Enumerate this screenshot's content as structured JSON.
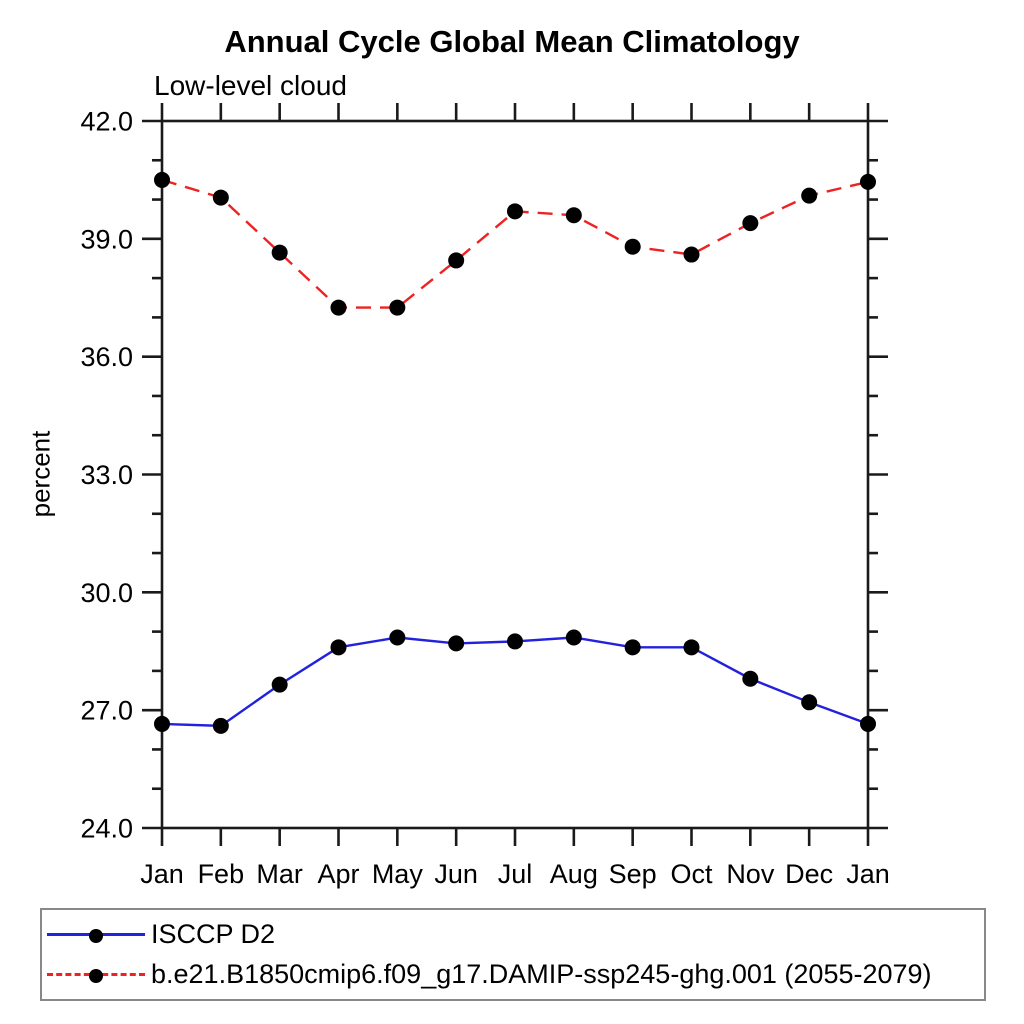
{
  "header": {
    "title": "Annual Cycle Global Mean Climatology",
    "subtitle": "Low-level cloud"
  },
  "chart_data": {
    "type": "line",
    "title": "Annual Cycle Global Mean Climatology",
    "subtitle": "Low-level cloud",
    "xlabel": "",
    "ylabel": "percent",
    "categories": [
      "Jan",
      "Feb",
      "Mar",
      "Apr",
      "May",
      "Jun",
      "Jul",
      "Aug",
      "Sep",
      "Oct",
      "Nov",
      "Dec",
      "Jan"
    ],
    "ylim": [
      24.0,
      42.0
    ],
    "ytick_major_step": 3.0,
    "ytick_minor_step": 1.0,
    "ytick_labels": [
      "24.0",
      "27.0",
      "30.0",
      "33.0",
      "36.0",
      "39.0",
      "42.0"
    ],
    "grid": false,
    "legend_position": "bottom-left-box",
    "axis_color": "#1a1a1a",
    "marker": {
      "shape": "circle",
      "color": "#000000",
      "radius": 8
    },
    "series": [
      {
        "name": "ISCCP D2",
        "color": "#2222dd",
        "line_style": "solid",
        "values": [
          26.65,
          26.6,
          27.65,
          28.6,
          28.85,
          28.7,
          28.75,
          28.85,
          28.6,
          28.6,
          27.8,
          27.2,
          26.65
        ]
      },
      {
        "name": "b.e21.B1850cmip6.f09_g17.DAMIP-ssp245-ghg.001 (2055-2079)",
        "color": "#ee2222",
        "line_style": "dashed",
        "values": [
          40.5,
          40.05,
          38.65,
          37.25,
          37.25,
          38.45,
          39.7,
          39.6,
          38.8,
          38.6,
          39.4,
          40.1,
          40.45
        ]
      }
    ]
  }
}
